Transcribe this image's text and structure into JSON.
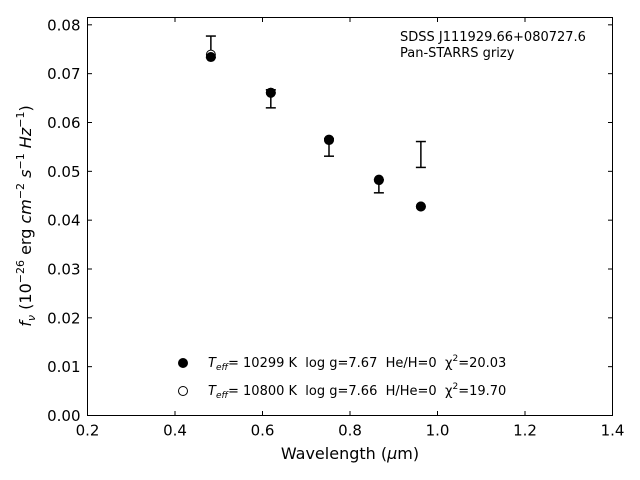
{
  "chart_data": {
    "type": "scatter",
    "xlabel": "Wavelength (μm)",
    "ylabel": "f_ν (10^-26 erg cm^-2 s^-1 Hz^-1)",
    "xlim": [
      0.2,
      1.4
    ],
    "ylim": [
      0.0,
      0.0815
    ],
    "xticks": [
      0.2,
      0.4,
      0.6,
      0.8,
      1.0,
      1.2,
      1.4
    ],
    "xtick_labels": [
      "0.2",
      "0.4",
      "0.6",
      "0.8",
      "1.0",
      "1.2",
      "1.4"
    ],
    "yticks": [
      0.0,
      0.01,
      0.02,
      0.03,
      0.04,
      0.05,
      0.06,
      0.07,
      0.08
    ],
    "ytick_labels": [
      "0.00",
      "0.01",
      "0.02",
      "0.03",
      "0.04",
      "0.05",
      "0.06",
      "0.07",
      "0.08"
    ],
    "grid": false,
    "annotation": [
      "SDSS J111929.66+080727.6",
      "Pan-STARRS grizy"
    ],
    "observed": {
      "x": [
        0.482,
        0.619,
        0.752,
        0.866,
        0.962
      ],
      "y": [
        0.0745,
        0.065,
        0.0551,
        0.0473,
        0.0535
      ],
      "yerr_low": [
        0.0012,
        0.002,
        0.002,
        0.0017,
        0.0027
      ],
      "yerr_high": [
        0.0032,
        0.0017,
        0.0016,
        0.001,
        0.0026
      ]
    },
    "series": [
      {
        "marker": "filled-circle",
        "label": "T_eff= 10299 K  log g=7.67  He/H=0  χ²=20.03",
        "x": [
          0.482,
          0.619,
          0.752,
          0.866,
          0.962
        ],
        "y": [
          0.0734,
          0.0661,
          0.0565,
          0.0483,
          0.0428
        ]
      },
      {
        "marker": "open-circle",
        "label": "T_eff= 10800 K  log g=7.66  H/He=0  χ²=19.70",
        "x": [
          0.482,
          0.619,
          0.752,
          0.866,
          0.962
        ],
        "y": [
          0.0739,
          0.0661,
          0.0564,
          0.0482,
          0.0428
        ]
      }
    ],
    "legend": [
      {
        "pre": "T",
        "sub": "eff",
        "mid": "= 10299 K  log g=7.67  He/H=0  χ",
        "sup": "2",
        "post": "=20.03"
      },
      {
        "pre": "T",
        "sub": "eff",
        "mid": "= 10800 K  log g=7.66  H/He=0  χ",
        "sup": "2",
        "post": "=19.70"
      }
    ],
    "legend_position": "lower-center"
  }
}
